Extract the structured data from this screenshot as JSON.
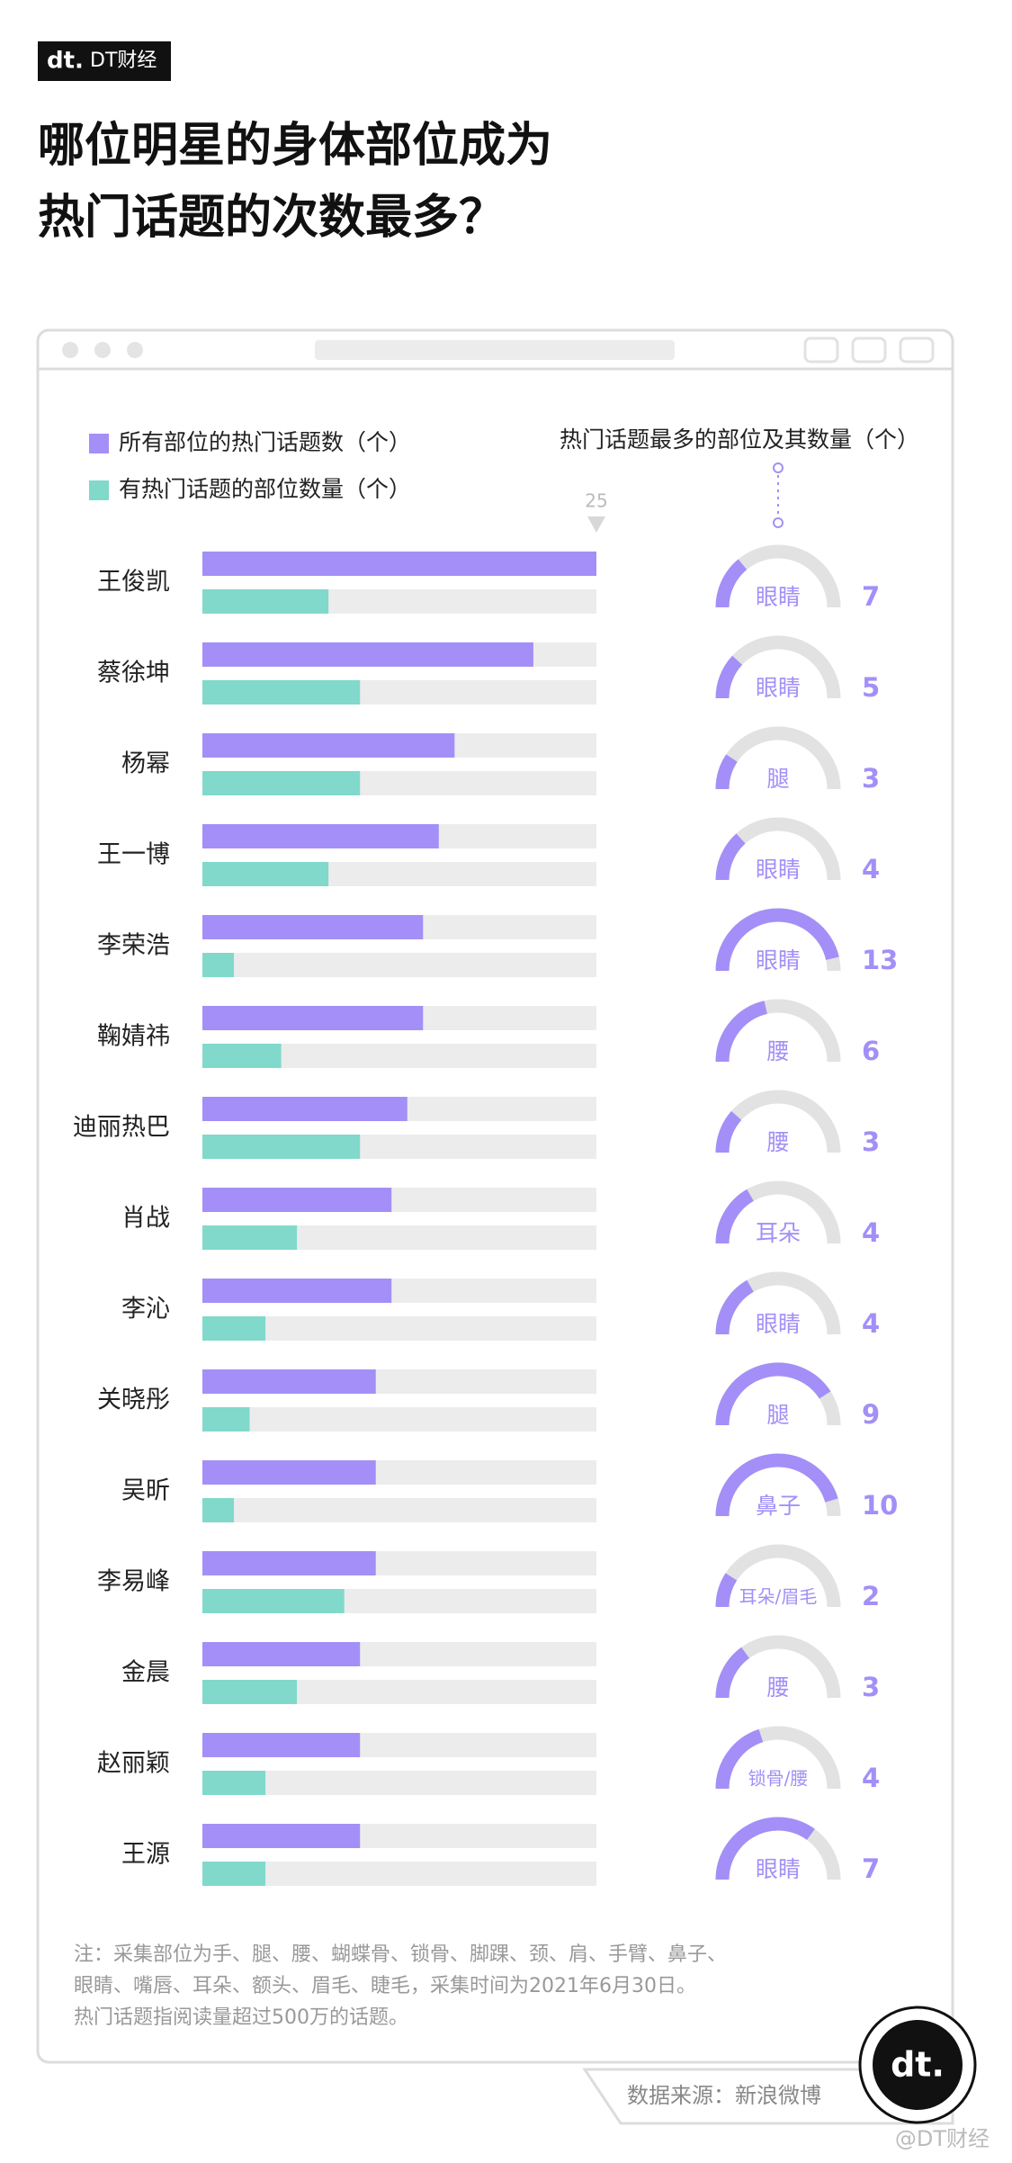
{
  "header": {
    "logo_text": "dt.",
    "brand": "DT财经",
    "title_lines": [
      "哪位明星的身体部位成为",
      "热门话题的次数最多？"
    ]
  },
  "chart_data": {
    "type": "bar",
    "categories": [
      "王俊凯",
      "蔡徐坤",
      "杨幂",
      "王一博",
      "李荣浩",
      "鞠婧祎",
      "迪丽热巴",
      "肖战",
      "李沁",
      "关晓彤",
      "吴昕",
      "李易峰",
      "金晨",
      "赵丽颖",
      "王源"
    ],
    "series": [
      {
        "name": "所有部位的热门话题数（个）",
        "color": "#a38ff7",
        "values": [
          25,
          21,
          16,
          15,
          14,
          14,
          13,
          12,
          12,
          11,
          11,
          11,
          10,
          10,
          10
        ]
      },
      {
        "name": "有热门话题的部位数量（个）",
        "color": "#80d9cb",
        "values": [
          8,
          10,
          10,
          8,
          2,
          5,
          10,
          6,
          4,
          3,
          2,
          9,
          6,
          4,
          4
        ]
      },
      {
        "name": "热门话题最多的部位及其数量（个）",
        "color": "#a38ff7",
        "parts": [
          "眼睛",
          "眼睛",
          "腿",
          "眼睛",
          "眼睛",
          "腰",
          "腰",
          "耳朵",
          "眼睛",
          "腿",
          "鼻子",
          "耳朵/眉毛",
          "腰",
          "锁骨/腰",
          "眼睛"
        ],
        "values": [
          7,
          5,
          3,
          4,
          13,
          6,
          3,
          4,
          4,
          9,
          10,
          2,
          3,
          4,
          7
        ]
      }
    ],
    "xlim": [
      0,
      25
    ],
    "xticks": [
      25
    ]
  },
  "footer": {
    "notes": [
      "注：采集部位为手、腿、腰、蝴蝶骨、锁骨、脚踝、颈、肩、手臂、鼻子、",
      "眼睛、嘴唇、耳朵、额头、眉毛、睫毛，采集时间为2021年6月30日。",
      "热门话题指阅读量超过500万的话题。"
    ],
    "source": "数据来源：新浪微博",
    "watermark": "@DT财经"
  }
}
